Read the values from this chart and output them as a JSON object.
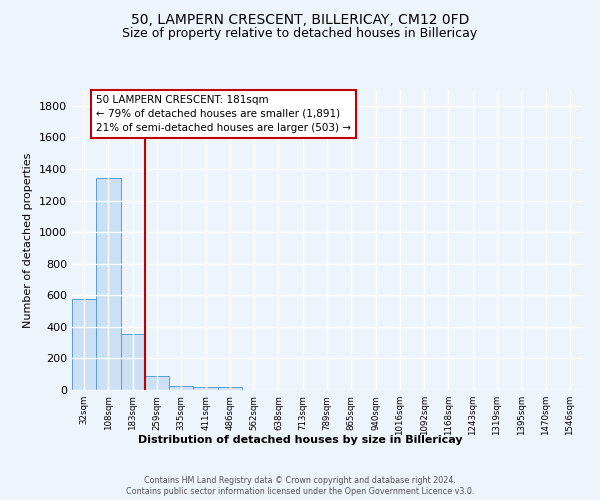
{
  "title1": "50, LAMPERN CRESCENT, BILLERICAY, CM12 0FD",
  "title2": "Size of property relative to detached houses in Billericay",
  "xlabel": "Distribution of detached houses by size in Billericay",
  "ylabel": "Number of detached properties",
  "bar_values": [
    575,
    1345,
    355,
    90,
    27,
    18,
    18,
    0,
    0,
    0,
    0,
    0,
    0,
    0,
    0,
    0,
    0,
    0,
    0,
    0,
    0
  ],
  "categories": [
    "32sqm",
    "108sqm",
    "183sqm",
    "259sqm",
    "335sqm",
    "411sqm",
    "486sqm",
    "562sqm",
    "638sqm",
    "713sqm",
    "789sqm",
    "865sqm",
    "940sqm",
    "1016sqm",
    "1092sqm",
    "1168sqm",
    "1243sqm",
    "1319sqm",
    "1395sqm",
    "1470sqm",
    "1546sqm"
  ],
  "bar_color": "#cce0f5",
  "bar_edge_color": "#5b9bd5",
  "vline_x_index": 2,
  "vline_color": "#c00000",
  "annotation_text": "50 LAMPERN CRESCENT: 181sqm\n← 79% of detached houses are smaller (1,891)\n21% of semi-detached houses are larger (503) →",
  "annotation_box_color": "white",
  "annotation_box_edge": "#c00000",
  "ylim": [
    0,
    1900
  ],
  "yticks": [
    0,
    200,
    400,
    600,
    800,
    1000,
    1200,
    1400,
    1600,
    1800
  ],
  "footer1": "Contains HM Land Registry data © Crown copyright and database right 2024.",
  "footer2": "Contains public sector information licensed under the Open Government Licence v3.0.",
  "bg_color": "#eef4fb",
  "grid_color": "#ffffff",
  "title_fontsize": 10,
  "subtitle_fontsize": 9
}
